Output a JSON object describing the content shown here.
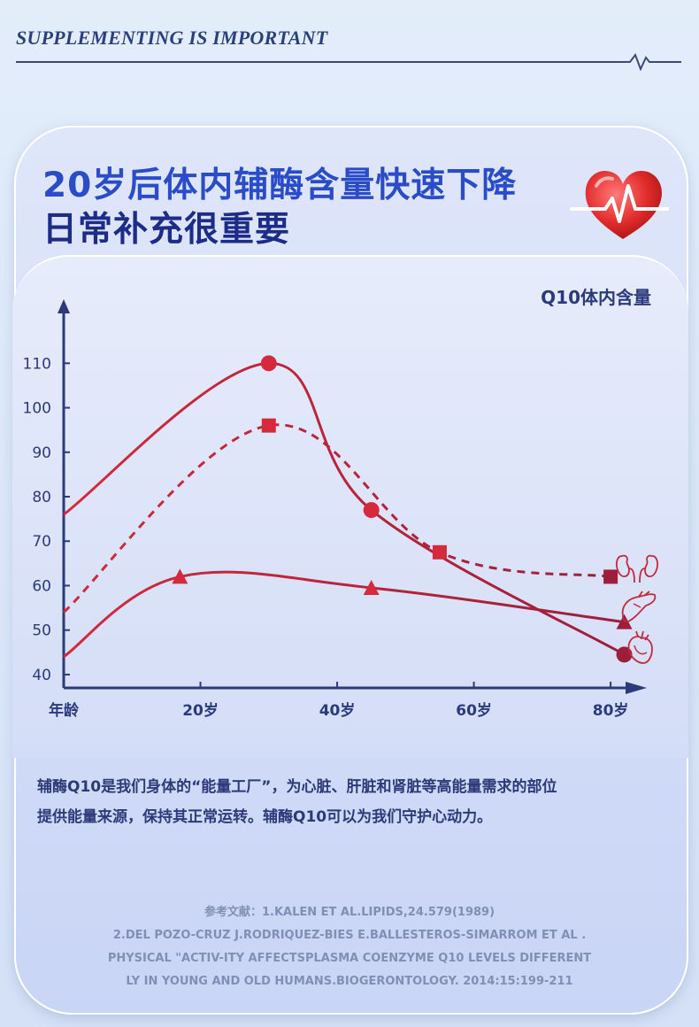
{
  "page": {
    "top_heading": "SUPPLEMENTING IS IMPORTANT",
    "headline_line1": "20岁后体内辅酶含量快速下降",
    "headline_line2": "日常补充很重要",
    "body": {
      "line1": "辅酶Q10是我们身体的“能量工厂”，为心脏、肝脏和肾脏等高能量需求的部位",
      "line2": "提供能量来源，保持其正常运转。辅酶Q10可以为我们守护心动力。"
    },
    "references": {
      "line1": "参考文献：1.KALEN ET AL.LIPIDS,24.579(1989)",
      "line2": "2.DEL POZO-CRUZ J.RODRIQUEZ-BIES E.BALLESTEROS-SIMARROM ET AL .",
      "line3": "PHYSICAL \"ACTIV-ITY AFFECTSPLASMA COENZYME Q10 LEVELS DIFFERENT",
      "line4": "LY IN YOUNG AND OLD HUMANS.BIOGERONTOLOGY. 2014:15:199-211"
    },
    "icons": [
      "heart-pulse-icon",
      "kidney-icon",
      "liver-icon",
      "heart-organ-icon"
    ]
  },
  "chart_data": {
    "type": "line",
    "title": "",
    "ylabel": "Q10体内含量",
    "xlabel": "年龄",
    "x_ticks": [
      "20岁",
      "40岁",
      "60岁",
      "80岁"
    ],
    "y_ticks": [
      40,
      50,
      60,
      70,
      80,
      90,
      100,
      110
    ],
    "xlim": [
      0,
      84
    ],
    "ylim": [
      37,
      124
    ],
    "series": [
      {
        "marker": "circle",
        "style": "solid",
        "color": "#d42a3c",
        "end_color": "#9c1e3a",
        "x": [
          0,
          30,
          45,
          82
        ],
        "y": [
          76,
          110,
          77,
          44.5
        ]
      },
      {
        "marker": "square",
        "style": "dashed",
        "color": "#d42a3c",
        "end_color": "#9c1e3a",
        "x": [
          0,
          30,
          55,
          80
        ],
        "y": [
          54,
          96,
          67.5,
          62
        ]
      },
      {
        "marker": "triangle",
        "style": "solid",
        "color": "#d42a3c",
        "end_color": "#9c1e3a",
        "x": [
          0,
          17,
          45,
          82
        ],
        "y": [
          44,
          62,
          59.5,
          51.8
        ]
      }
    ],
    "grid": false,
    "legend": "none"
  }
}
